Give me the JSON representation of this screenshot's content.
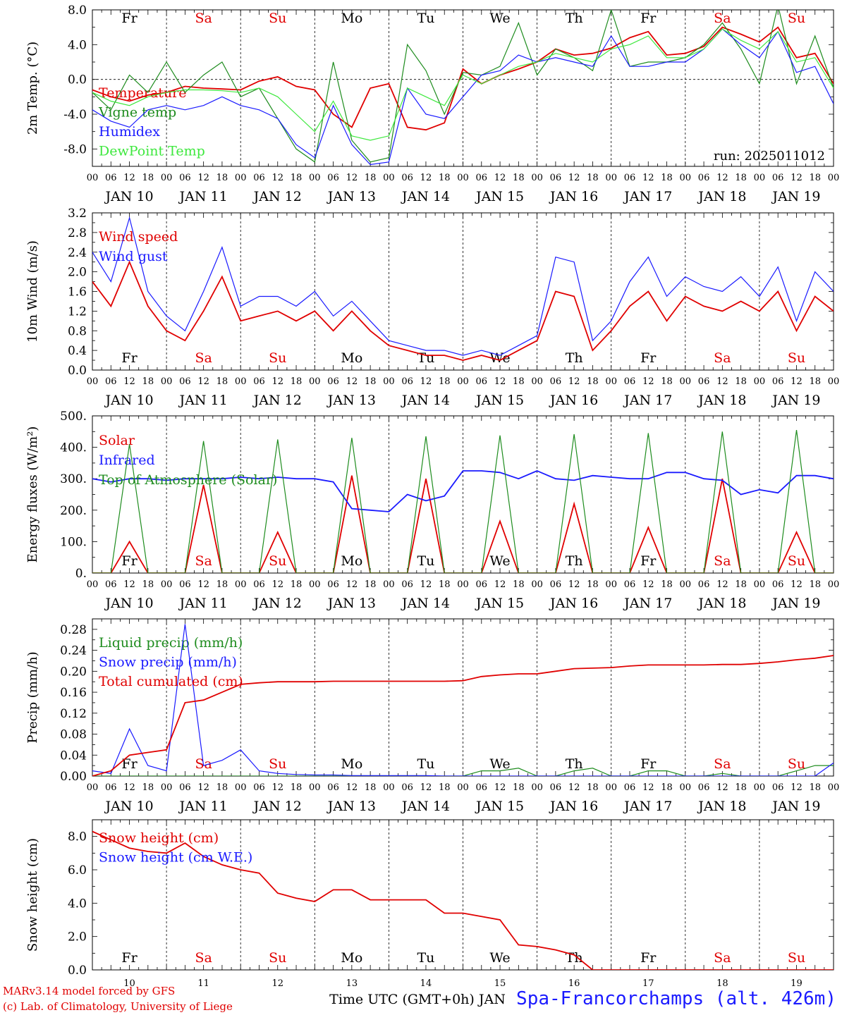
{
  "colors": {
    "red": "#e00000",
    "green": "#1e8c1e",
    "lightgreen": "#3ee83e",
    "blue": "#1a1aff",
    "black": "#000000"
  },
  "days": [
    "Fr",
    "Sa",
    "Su",
    "Mo",
    "Tu",
    "We",
    "Th",
    "Fr",
    "Sa",
    "Su"
  ],
  "weekend_days": [
    "Sa",
    "Su"
  ],
  "hour_ticks": [
    "00",
    "06",
    "12",
    "18"
  ],
  "date_labels": [
    "JAN 10",
    "JAN 11",
    "JAN 12",
    "JAN 13",
    "JAN 14",
    "JAN 15",
    "JAN 16",
    "JAN 17",
    "JAN 18",
    "JAN 19"
  ],
  "bottom_day_numbers": [
    "10",
    "11",
    "12",
    "13",
    "14",
    "15",
    "16",
    "17",
    "18",
    "19"
  ],
  "footer": {
    "credit_line1": "MARv3.14 model forced by GFS",
    "credit_line2": "(c) Lab. of Climatology, University of Liege",
    "xlabel": "Time UTC (GMT+0h) JAN",
    "station": "Spa-Francorchamps (alt. 426m)"
  },
  "chart_data": [
    {
      "type": "line",
      "id": "temp",
      "ylabel": "2m Temp. (°C)",
      "ylim": [
        -10,
        8
      ],
      "yticks": [
        "8.0",
        "4.0",
        "0.0",
        "-4.0",
        "-8.0"
      ],
      "ytick_values": [
        8,
        4,
        0,
        -4,
        -8
      ],
      "zero_line": true,
      "annotation": "run: 2025011012",
      "x_hours": [
        0,
        6,
        12,
        18,
        24,
        30,
        36,
        42,
        48,
        54,
        60,
        66,
        72,
        78,
        84,
        90,
        96,
        102,
        108,
        114,
        120,
        126,
        132,
        138,
        144,
        150,
        156,
        162,
        168,
        174,
        180,
        186,
        192,
        198,
        204,
        210,
        216,
        222,
        228,
        234,
        240
      ],
      "series": [
        {
          "name": "Temperature",
          "color": "red",
          "values": [
            -1.2,
            -2.0,
            -2.5,
            -1.8,
            -1.5,
            -0.8,
            -1.0,
            -1.1,
            -1.2,
            -0.2,
            0.3,
            -0.8,
            -1.2,
            -4.0,
            -5.5,
            -1.0,
            -0.5,
            -5.5,
            -5.8,
            -5.0,
            1.2,
            -0.5,
            0.5,
            1.2,
            2.0,
            3.5,
            2.8,
            3.0,
            3.6,
            4.8,
            5.5,
            2.8,
            3.0,
            3.8,
            6.0,
            5.2,
            4.3,
            6.0,
            2.5,
            3.0,
            -0.5
          ]
        },
        {
          "name": "Vigne temp",
          "color": "green",
          "values": [
            -1.5,
            -3.5,
            0.5,
            -1.5,
            2.0,
            -1.5,
            0.5,
            2.0,
            -2.0,
            -1.0,
            -4.5,
            -8.0,
            -9.5,
            2.0,
            -7.0,
            -9.5,
            -9.0,
            4.0,
            1.0,
            -4.0,
            0.8,
            0.5,
            1.5,
            6.5,
            0.5,
            3.5,
            2.5,
            1.0,
            8.0,
            1.5,
            2.0,
            2.0,
            2.5,
            4.0,
            6.5,
            3.5,
            -0.5,
            8.5,
            -0.5,
            5.0,
            -1.0
          ]
        },
        {
          "name": "Humidex",
          "color": "blue",
          "values": [
            -3.5,
            -4.8,
            -5.5,
            -3.5,
            -3.0,
            -3.5,
            -3.0,
            -2.0,
            -3.0,
            -3.5,
            -4.5,
            -7.5,
            -9.0,
            -3.0,
            -7.5,
            -9.8,
            -9.5,
            -1.0,
            -4.0,
            -4.5,
            -2.0,
            0.5,
            1.0,
            2.8,
            2.0,
            2.5,
            2.0,
            1.5,
            5.0,
            1.5,
            1.5,
            2.0,
            2.0,
            3.5,
            5.8,
            4.0,
            2.5,
            5.5,
            0.8,
            1.5,
            -2.8
          ]
        },
        {
          "name": "DewPoint Temp",
          "color": "lightgreen",
          "values": [
            -1.5,
            -2.5,
            -3.0,
            -2.0,
            -1.5,
            -1.2,
            -1.2,
            -1.3,
            -1.5,
            -1.0,
            -2.0,
            -4.0,
            -6.0,
            -2.5,
            -6.5,
            -7.0,
            -6.5,
            -1.0,
            -2.0,
            -3.0,
            0.5,
            -0.5,
            0.5,
            1.5,
            2.0,
            3.0,
            2.5,
            2.0,
            3.5,
            4.0,
            5.0,
            2.5,
            2.5,
            3.5,
            5.8,
            4.5,
            3.5,
            5.5,
            2.0,
            2.5,
            -1.0
          ]
        }
      ]
    },
    {
      "type": "line",
      "id": "wind",
      "ylabel": "10m Wind (m/s)",
      "ylim": [
        0,
        3.2
      ],
      "yticks": [
        "3.2",
        "2.8",
        "2.4",
        "2.0",
        "1.6",
        "1.2",
        "0.8",
        "0.4",
        "0.0"
      ],
      "ytick_values": [
        3.2,
        2.8,
        2.4,
        2.0,
        1.6,
        1.2,
        0.8,
        0.4,
        0
      ],
      "x_hours": [
        0,
        6,
        12,
        18,
        24,
        30,
        36,
        42,
        48,
        54,
        60,
        66,
        72,
        78,
        84,
        90,
        96,
        102,
        108,
        114,
        120,
        126,
        132,
        138,
        144,
        150,
        156,
        162,
        168,
        174,
        180,
        186,
        192,
        198,
        204,
        210,
        216,
        222,
        228,
        234,
        240
      ],
      "series": [
        {
          "name": "Wind speed",
          "color": "red",
          "values": [
            1.8,
            1.3,
            2.2,
            1.3,
            0.8,
            0.6,
            1.2,
            1.9,
            1.0,
            1.1,
            1.2,
            1.0,
            1.2,
            0.8,
            1.2,
            0.8,
            0.5,
            0.4,
            0.3,
            0.3,
            0.2,
            0.3,
            0.2,
            0.4,
            0.6,
            1.6,
            1.5,
            0.4,
            0.8,
            1.3,
            1.6,
            1.0,
            1.5,
            1.3,
            1.2,
            1.4,
            1.2,
            1.6,
            0.8,
            1.5,
            1.2
          ]
        },
        {
          "name": "Wind gust",
          "color": "blue",
          "values": [
            2.4,
            1.8,
            3.1,
            1.6,
            1.1,
            0.8,
            1.6,
            2.5,
            1.3,
            1.5,
            1.5,
            1.3,
            1.6,
            1.1,
            1.4,
            1.0,
            0.6,
            0.5,
            0.4,
            0.4,
            0.3,
            0.4,
            0.3,
            0.5,
            0.7,
            2.3,
            2.2,
            0.6,
            1.0,
            1.8,
            2.3,
            1.5,
            1.9,
            1.7,
            1.6,
            1.9,
            1.5,
            2.1,
            1.0,
            2.0,
            1.6
          ]
        }
      ]
    },
    {
      "type": "line",
      "id": "energy",
      "ylabel": "Energy fluxes (W/m²)",
      "ylim": [
        0,
        500
      ],
      "yticks": [
        "500.",
        "400.",
        "300.",
        "200.",
        "100.",
        "0."
      ],
      "ytick_values": [
        500,
        400,
        300,
        200,
        100,
        0
      ],
      "x_hours": [
        0,
        6,
        12,
        18,
        24,
        30,
        36,
        42,
        48,
        54,
        60,
        66,
        72,
        78,
        84,
        90,
        96,
        102,
        108,
        114,
        120,
        126,
        132,
        138,
        144,
        150,
        156,
        162,
        168,
        174,
        180,
        186,
        192,
        198,
        204,
        210,
        216,
        222,
        228,
        234,
        240
      ],
      "series": [
        {
          "name": "Solar",
          "color": "red",
          "values": [
            0,
            0,
            100,
            0,
            0,
            0,
            280,
            0,
            0,
            0,
            130,
            0,
            0,
            0,
            310,
            0,
            0,
            0,
            300,
            0,
            0,
            0,
            165,
            0,
            0,
            0,
            220,
            0,
            0,
            0,
            145,
            0,
            0,
            0,
            300,
            0,
            0,
            0,
            130,
            0,
            0
          ]
        },
        {
          "name": "Infrared",
          "color": "blue",
          "values": [
            300,
            290,
            300,
            300,
            295,
            300,
            300,
            300,
            305,
            300,
            305,
            300,
            300,
            290,
            205,
            200,
            195,
            250,
            230,
            245,
            325,
            325,
            320,
            300,
            325,
            300,
            295,
            310,
            305,
            300,
            300,
            320,
            320,
            300,
            295,
            250,
            265,
            255,
            310,
            310,
            300
          ]
        },
        {
          "name": "Top of Atmosphere (Solar)",
          "color": "green",
          "values": [
            0,
            0,
            410,
            0,
            0,
            0,
            420,
            0,
            0,
            0,
            425,
            0,
            0,
            0,
            430,
            0,
            0,
            0,
            435,
            0,
            0,
            0,
            438,
            0,
            0,
            0,
            442,
            0,
            0,
            0,
            445,
            0,
            0,
            0,
            450,
            0,
            0,
            0,
            455,
            0,
            0
          ]
        }
      ]
    },
    {
      "type": "line",
      "id": "precip",
      "ylabel": "Precip (mm/h)",
      "ylim": [
        0,
        0.3
      ],
      "yticks": [
        "0.28",
        "0.24",
        "0.20",
        "0.16",
        "0.12",
        "0.08",
        "0.04",
        "0.00"
      ],
      "ytick_values": [
        0.28,
        0.24,
        0.2,
        0.16,
        0.12,
        0.08,
        0.04,
        0
      ],
      "x_hours": [
        0,
        6,
        12,
        18,
        24,
        30,
        36,
        42,
        48,
        54,
        60,
        66,
        72,
        78,
        84,
        90,
        96,
        102,
        108,
        114,
        120,
        126,
        132,
        138,
        144,
        150,
        156,
        162,
        168,
        174,
        180,
        186,
        192,
        198,
        204,
        210,
        216,
        222,
        228,
        234,
        240
      ],
      "series": [
        {
          "name": "Liquid precip (mm/h)",
          "color": "green",
          "values": [
            0,
            0,
            0,
            0,
            0,
            0,
            0,
            0,
            0,
            0,
            0,
            0,
            0,
            0,
            0,
            0,
            0,
            0,
            0,
            0,
            0,
            0.01,
            0.01,
            0.015,
            0,
            0,
            0.01,
            0.015,
            0,
            0,
            0.01,
            0.01,
            0,
            0,
            0.005,
            0,
            0,
            0,
            0.01,
            0.02,
            0.02
          ]
        },
        {
          "name": "Snow precip (mm/h)",
          "color": "blue",
          "values": [
            0.01,
            0.005,
            0.09,
            0.02,
            0.01,
            0.29,
            0.02,
            0.03,
            0.05,
            0.01,
            0.005,
            0.003,
            0.002,
            0.002,
            0.001,
            0.001,
            0.001,
            0.001,
            0.001,
            0,
            0,
            0,
            0,
            0,
            0,
            0,
            0,
            0,
            0,
            0,
            0,
            0,
            0,
            0,
            0,
            0,
            0,
            0,
            0,
            0,
            0.025
          ]
        },
        {
          "name": "Total cumulated (cm)",
          "color": "red",
          "values": [
            0,
            0.01,
            0.04,
            0.045,
            0.05,
            0.14,
            0.145,
            0.16,
            0.175,
            0.178,
            0.18,
            0.18,
            0.18,
            0.181,
            0.181,
            0.181,
            0.181,
            0.181,
            0.181,
            0.181,
            0.182,
            0.19,
            0.193,
            0.195,
            0.195,
            0.2,
            0.205,
            0.206,
            0.207,
            0.21,
            0.212,
            0.212,
            0.212,
            0.212,
            0.213,
            0.213,
            0.215,
            0.218,
            0.222,
            0.225,
            0.23
          ]
        }
      ]
    },
    {
      "type": "line",
      "id": "snow",
      "ylabel": "Snow height (cm)",
      "ylim": [
        0,
        9
      ],
      "yticks": [
        "8.0",
        "6.0",
        "4.0",
        "2.0",
        "0.0"
      ],
      "ytick_values": [
        8,
        6,
        4,
        2,
        0
      ],
      "x_hours": [
        0,
        6,
        12,
        18,
        24,
        30,
        36,
        42,
        48,
        54,
        60,
        66,
        72,
        78,
        84,
        90,
        96,
        102,
        108,
        114,
        120,
        126,
        132,
        138,
        144,
        150,
        156,
        162,
        168,
        174,
        180,
        186,
        192,
        198,
        204,
        210,
        216,
        222,
        228,
        234,
        240
      ],
      "series": [
        {
          "name": "Snow height (cm)",
          "color": "red",
          "values": [
            8.3,
            7.8,
            7.3,
            7.1,
            7.0,
            7.6,
            6.8,
            6.3,
            6.0,
            5.8,
            4.6,
            4.3,
            4.1,
            4.8,
            4.8,
            4.2,
            4.2,
            4.2,
            4.2,
            3.4,
            3.4,
            3.2,
            3.0,
            1.5,
            1.4,
            1.2,
            0.9,
            0.0,
            0.0,
            0.0,
            0.0,
            0.0,
            0.0,
            0.0,
            0.0,
            0.0,
            0.0,
            0.0,
            0.0,
            0.0,
            0.0
          ]
        },
        {
          "name": "Snow height (cm W.E.)",
          "color": "blue",
          "values": []
        }
      ]
    }
  ]
}
